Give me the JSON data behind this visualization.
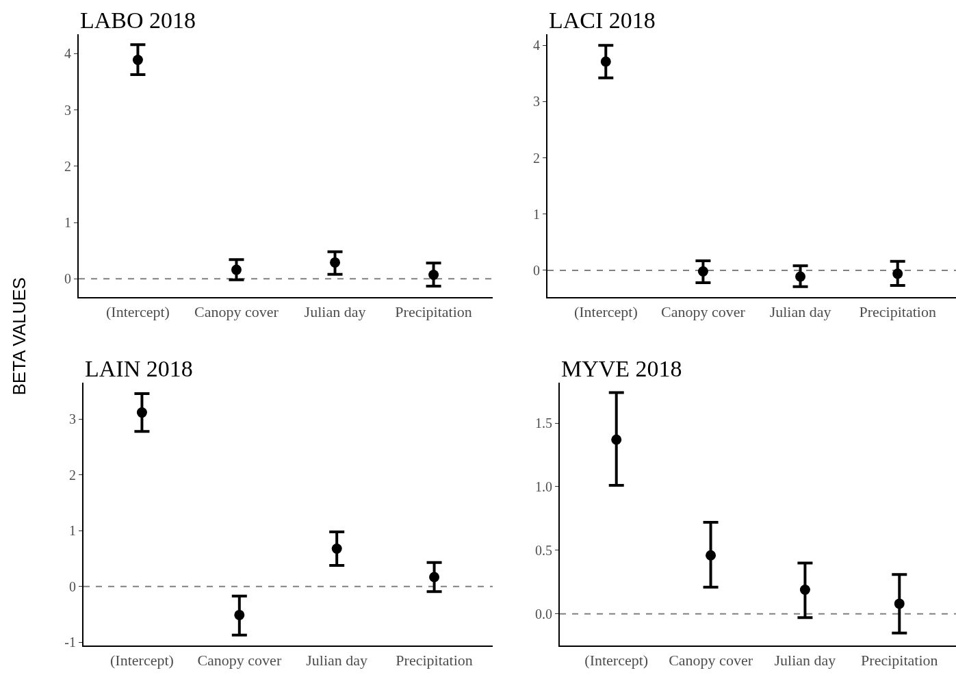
{
  "chart_data": [
    {
      "type": "scatter",
      "title": "LABO 2018",
      "ylabel": "BETA VALUES",
      "categories": [
        "(Intercept)",
        "Canopy cover",
        "Julian day",
        "Precipitation"
      ],
      "values": [
        3.89,
        0.16,
        0.29,
        0.07
      ],
      "errors": [
        [
          3.63,
          4.16
        ],
        [
          -0.02,
          0.34
        ],
        [
          0.08,
          0.48
        ],
        [
          -0.13,
          0.28
        ]
      ],
      "color": "#000000",
      "marker": "circle",
      "ylim": [
        -0.33,
        4.35
      ],
      "yticks": [
        0,
        1,
        2,
        3,
        4
      ],
      "grid": false,
      "ref_lines": [
        {
          "axis": "y",
          "value": 0,
          "color": "#808080",
          "line_style": "dashed"
        }
      ]
    },
    {
      "type": "scatter",
      "title": "LACI 2018",
      "categories": [
        "(Intercept)",
        "Canopy cover",
        "Julian day",
        "Precipitation"
      ],
      "values": [
        3.71,
        -0.02,
        -0.11,
        -0.06
      ],
      "errors": [
        [
          3.42,
          4.0
        ],
        [
          -0.22,
          0.17
        ],
        [
          -0.29,
          0.08
        ],
        [
          -0.27,
          0.16
        ]
      ],
      "color": "#000000",
      "marker": "circle",
      "ylim": [
        -0.48,
        4.2
      ],
      "yticks": [
        0,
        1,
        2,
        3,
        4
      ],
      "grid": false,
      "ref_lines": [
        {
          "axis": "y",
          "value": 0,
          "color": "#808080",
          "line_style": "dashed"
        }
      ]
    },
    {
      "type": "scatter",
      "title": "LAIN 2018",
      "categories": [
        "(Intercept)",
        "Canopy cover",
        "Julian day",
        "Precipitation"
      ],
      "values": [
        3.12,
        -0.51,
        0.68,
        0.17
      ],
      "errors": [
        [
          2.78,
          3.46
        ],
        [
          -0.87,
          -0.17
        ],
        [
          0.38,
          0.98
        ],
        [
          -0.09,
          0.43
        ]
      ],
      "color": "#000000",
      "marker": "circle",
      "ylim": [
        -1.06,
        3.66
      ],
      "yticks": [
        -1,
        0,
        1,
        2,
        3
      ],
      "grid": false,
      "ref_lines": [
        {
          "axis": "y",
          "value": 0,
          "color": "#808080",
          "line_style": "dashed"
        }
      ]
    },
    {
      "type": "scatter",
      "title": "MYVE 2018",
      "categories": [
        "(Intercept)",
        "Canopy cover",
        "Julian day",
        "Precipitation"
      ],
      "values": [
        1.37,
        0.46,
        0.19,
        0.08
      ],
      "errors": [
        [
          1.01,
          1.74
        ],
        [
          0.21,
          0.72
        ],
        [
          -0.03,
          0.4
        ],
        [
          -0.15,
          0.31
        ]
      ],
      "color": "#000000",
      "marker": "circle",
      "ylim": [
        -0.25,
        1.82
      ],
      "yticks": [
        {
          "value": 0,
          "label": "0.0"
        },
        {
          "value": 0.5,
          "label": "0.5"
        },
        {
          "value": 1,
          "label": "1.0"
        },
        {
          "value": 1.5,
          "label": "1.5"
        }
      ],
      "grid": false,
      "ref_lines": [
        {
          "axis": "y",
          "value": 0,
          "color": "#808080",
          "line_style": "dashed"
        }
      ]
    }
  ]
}
